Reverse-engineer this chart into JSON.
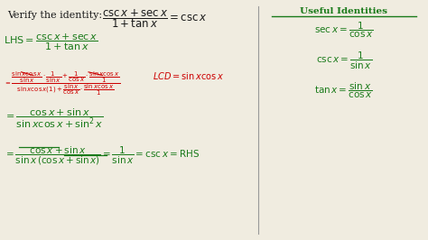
{
  "bg_color": "#f0ece0",
  "dark_green": "#1a7a1a",
  "red": "#cc0000",
  "black": "#1a1a1a",
  "divider_color": "#999999"
}
